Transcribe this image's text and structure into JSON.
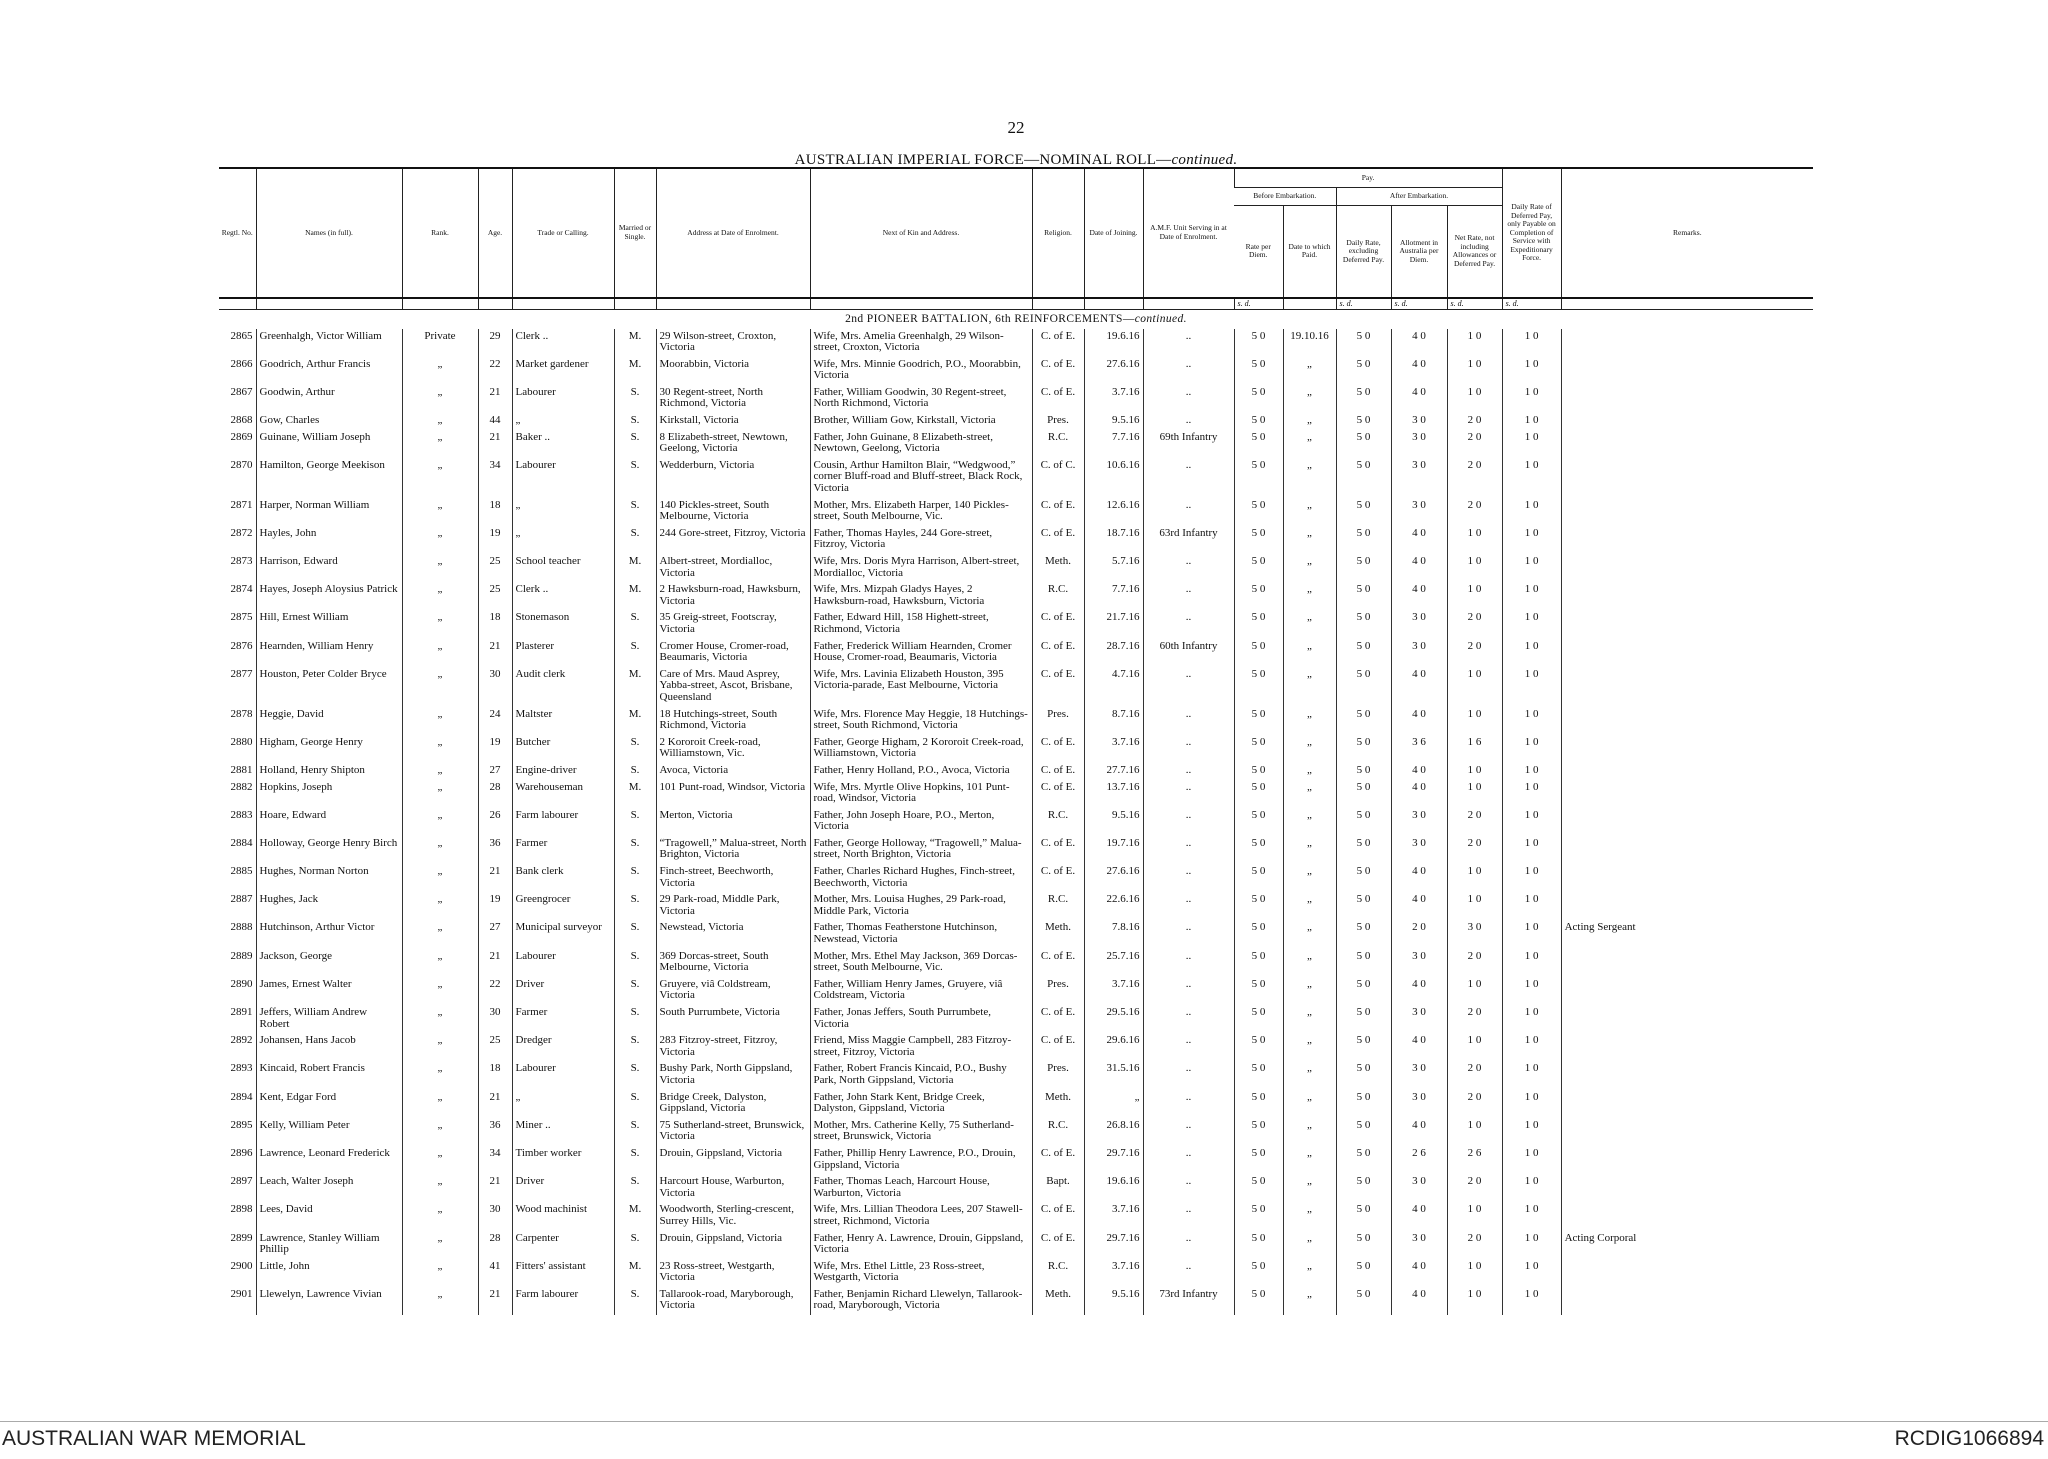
{
  "page_number": "22",
  "title": {
    "main": "AUSTRALIAN IMPERIAL FORCE—NOMINAL ROLL—",
    "cont": "continued."
  },
  "header": {
    "columns": [
      "Regtl. No.",
      "Names (in full).",
      "Rank.",
      "Age.",
      "Trade or Calling.",
      "Married or Single.",
      "Address at Date of Enrolment.",
      "Next of Kin and Address.",
      "Religion.",
      "Date of Joining.",
      "A.M.F. Unit Serving in at Date of Enrolment.",
      "Rate per Diem.",
      "Date to which Paid.",
      "Daily Rate, excluding Deferred Pay.",
      "Allotment in Australia per Diem.",
      "Net Rate, not including Allowances or Deferred Pay.",
      "Daily Rate of Deferred Pay, only Payable on Completion of Service with Expeditionary Force.",
      "Remarks."
    ],
    "pay": "Pay.",
    "before": "Before Embarkation.",
    "after": "After Embarkation.",
    "units": [
      "s. d.",
      "s. d.",
      "s. d.",
      "s. d.",
      "s. d."
    ]
  },
  "section": {
    "main": "2nd PIONEER BATTALION, 6th REINFORCEMENTS—",
    "cont": "continued."
  },
  "rows": [
    [
      "2865",
      "Greenhalgh, Victor William",
      "Private",
      "29",
      "Clerk ..",
      "M.",
      "29 Wilson-street, Croxton, Victoria",
      "Wife, Mrs. Amelia Greenhalgh, 29 Wilson-street, Croxton, Victoria",
      "C. of E.",
      "19.6.16",
      "..",
      "5 0",
      "19.10.16",
      "5 0",
      "4 0",
      "1 0",
      "1 0"
    ],
    [
      "2866",
      "Goodrich, Arthur Francis",
      "„",
      "22",
      "Market gardener",
      "M.",
      "Moorabbin, Victoria",
      "Wife, Mrs. Minnie Goodrich, P.O., Moorabbin, Victoria",
      "C. of E.",
      "27.6.16",
      "..",
      "5 0",
      "„",
      "5 0",
      "4 0",
      "1 0",
      "1 0"
    ],
    [
      "2867",
      "Goodwin, Arthur",
      "„",
      "21",
      "Labourer",
      "S.",
      "30 Regent-street, North Richmond, Victoria",
      "Father, William Goodwin, 30 Regent-street, North Richmond, Victoria",
      "C. of E.",
      "3.7.16",
      "..",
      "5 0",
      "„",
      "5 0",
      "4 0",
      "1 0",
      "1 0"
    ],
    [
      "2868",
      "Gow, Charles",
      "„",
      "44",
      "„",
      "S.",
      "Kirkstall, Victoria",
      "Brother, William Gow, Kirkstall, Victoria",
      "Pres.",
      "9.5.16",
      "..",
      "5 0",
      "„",
      "5 0",
      "3 0",
      "2 0",
      "1 0"
    ],
    [
      "2869",
      "Guinane, William Joseph",
      "„",
      "21",
      "Baker ..",
      "S.",
      "8 Elizabeth-street, Newtown, Geelong, Victoria",
      "Father, John Guinane, 8 Elizabeth-street, Newtown, Geelong, Victoria",
      "R.C.",
      "7.7.16",
      "69th Infantry",
      "5 0",
      "„",
      "5 0",
      "3 0",
      "2 0",
      "1 0"
    ],
    [
      "2870",
      "Hamilton, George Meekison",
      "„",
      "34",
      "Labourer",
      "S.",
      "Wedderburn, Victoria",
      "Cousin, Arthur Hamilton Blair, “Wedgwood,” corner Bluff-road and Bluff-street, Black Rock, Victoria",
      "C. of C.",
      "10.6.16",
      "..",
      "5 0",
      "„",
      "5 0",
      "3 0",
      "2 0",
      "1 0"
    ],
    [
      "2871",
      "Harper, Norman William",
      "„",
      "18",
      "„",
      "S.",
      "140 Pickles-street, South Melbourne, Victoria",
      "Mother, Mrs. Elizabeth Harper, 140 Pickles-street, South Melbourne, Vic.",
      "C. of E.",
      "12.6.16",
      "..",
      "5 0",
      "„",
      "5 0",
      "3 0",
      "2 0",
      "1 0"
    ],
    [
      "2872",
      "Hayles, John",
      "„",
      "19",
      "„",
      "S.",
      "244 Gore-street, Fitzroy, Victoria",
      "Father, Thomas Hayles, 244 Gore-street, Fitzroy, Victoria",
      "C. of E.",
      "18.7.16",
      "63rd Infantry",
      "5 0",
      "„",
      "5 0",
      "4 0",
      "1 0",
      "1 0"
    ],
    [
      "2873",
      "Harrison, Edward",
      "„",
      "25",
      "School teacher",
      "M.",
      "Albert-street, Mordialloc, Victoria",
      "Wife, Mrs. Doris Myra Harrison, Albert-street, Mordialloc, Victoria",
      "Meth.",
      "5.7.16",
      "..",
      "5 0",
      "„",
      "5 0",
      "4 0",
      "1 0",
      "1 0"
    ],
    [
      "2874",
      "Hayes, Joseph Aloysius Patrick",
      "„",
      "25",
      "Clerk ..",
      "M.",
      "2 Hawksburn-road, Hawksburn, Victoria",
      "Wife, Mrs. Mizpah Gladys Hayes, 2 Hawksburn-road, Hawksburn, Victoria",
      "R.C.",
      "7.7.16",
      "..",
      "5 0",
      "„",
      "5 0",
      "4 0",
      "1 0",
      "1 0"
    ],
    [
      "2875",
      "Hill, Ernest William",
      "„",
      "18",
      "Stonemason",
      "S.",
      "35 Greig-street, Footscray, Victoria",
      "Father, Edward Hill, 158 Highett-street, Richmond, Victoria",
      "C. of E.",
      "21.7.16",
      "..",
      "5 0",
      "„",
      "5 0",
      "3 0",
      "2 0",
      "1 0"
    ],
    [
      "2876",
      "Hearnden, William Henry",
      "„",
      "21",
      "Plasterer",
      "S.",
      "Cromer House, Cromer-road, Beaumaris, Victoria",
      "Father, Frederick William Hearnden, Cromer House, Cromer-road, Beaumaris, Victoria",
      "C. of E.",
      "28.7.16",
      "60th Infantry",
      "5 0",
      "„",
      "5 0",
      "3 0",
      "2 0",
      "1 0"
    ],
    [
      "2877",
      "Houston, Peter Colder Bryce",
      "„",
      "30",
      "Audit clerk",
      "M.",
      "Care of Mrs. Maud Asprey, Yabba-street, Ascot, Brisbane, Queensland",
      "Wife, Mrs. Lavinia Elizabeth Houston, 395 Victoria-parade, East Melbourne, Victoria",
      "C. of E.",
      "4.7.16",
      "..",
      "5 0",
      "„",
      "5 0",
      "4 0",
      "1 0",
      "1 0"
    ],
    [
      "2878",
      "Heggie, David",
      "„",
      "24",
      "Maltster",
      "M.",
      "18 Hutchings-street, South Richmond, Victoria",
      "Wife, Mrs. Florence May Heggie, 18 Hutchings-street, South Richmond, Victoria",
      "Pres.",
      "8.7.16",
      "..",
      "5 0",
      "„",
      "5 0",
      "4 0",
      "1 0",
      "1 0"
    ],
    [
      "2880",
      "Higham, George Henry",
      "„",
      "19",
      "Butcher",
      "S.",
      "2 Kororoit Creek-road, Williamstown, Vic.",
      "Father, George Higham, 2 Kororoit Creek-road, Williamstown, Victoria",
      "C. of E.",
      "3.7.16",
      "..",
      "5 0",
      "„",
      "5 0",
      "3 6",
      "1 6",
      "1 0"
    ],
    [
      "2881",
      "Holland, Henry Shipton",
      "„",
      "27",
      "Engine-driver",
      "S.",
      "Avoca, Victoria",
      "Father, Henry Holland, P.O., Avoca, Victoria",
      "C. of E.",
      "27.7.16",
      "..",
      "5 0",
      "„",
      "5 0",
      "4 0",
      "1 0",
      "1 0"
    ],
    [
      "2882",
      "Hopkins, Joseph",
      "„",
      "28",
      "Warehouseman",
      "M.",
      "101 Punt-road, Windsor, Victoria",
      "Wife, Mrs. Myrtle Olive Hopkins, 101 Punt-road, Windsor, Victoria",
      "C. of E.",
      "13.7.16",
      "..",
      "5 0",
      "„",
      "5 0",
      "4 0",
      "1 0",
      "1 0"
    ],
    [
      "2883",
      "Hoare, Edward",
      "„",
      "26",
      "Farm labourer",
      "S.",
      "Merton, Victoria",
      "Father, John Joseph Hoare, P.O., Merton, Victoria",
      "R.C.",
      "9.5.16",
      "..",
      "5 0",
      "„",
      "5 0",
      "3 0",
      "2 0",
      "1 0"
    ],
    [
      "2884",
      "Holloway, George Henry Birch",
      "„",
      "36",
      "Farmer",
      "S.",
      "“Tragowell,” Malua-street, North Brighton, Victoria",
      "Father, George Holloway, “Tragowell,” Malua-street, North Brighton, Victoria",
      "C. of E.",
      "19.7.16",
      "..",
      "5 0",
      "„",
      "5 0",
      "3 0",
      "2 0",
      "1 0"
    ],
    [
      "2885",
      "Hughes, Norman Norton",
      "„",
      "21",
      "Bank clerk",
      "S.",
      "Finch-street, Beechworth, Victoria",
      "Father, Charles Richard Hughes, Finch-street, Beechworth, Victoria",
      "C. of E.",
      "27.6.16",
      "..",
      "5 0",
      "„",
      "5 0",
      "4 0",
      "1 0",
      "1 0"
    ],
    [
      "2887",
      "Hughes, Jack",
      "„",
      "19",
      "Greengrocer",
      "S.",
      "29 Park-road, Middle Park, Victoria",
      "Mother, Mrs. Louisa Hughes, 29 Park-road, Middle Park, Victoria",
      "R.C.",
      "22.6.16",
      "..",
      "5 0",
      "„",
      "5 0",
      "4 0",
      "1 0",
      "1 0"
    ],
    [
      "2888",
      "Hutchinson, Arthur Victor",
      "„",
      "27",
      "Municipal surveyor",
      "S.",
      "Newstead, Victoria",
      "Father, Thomas Featherstone Hutchinson, Newstead, Victoria",
      "Meth.",
      "7.8.16",
      "..",
      "5 0",
      "„",
      "5 0",
      "2 0",
      "3 0",
      "1 0",
      "Acting Sergeant"
    ],
    [
      "2889",
      "Jackson, George",
      "„",
      "21",
      "Labourer",
      "S.",
      "369 Dorcas-street, South Melbourne, Victoria",
      "Mother, Mrs. Ethel May Jackson, 369 Dorcas-street, South Melbourne, Vic.",
      "C. of E.",
      "25.7.16",
      "..",
      "5 0",
      "„",
      "5 0",
      "3 0",
      "2 0",
      "1 0"
    ],
    [
      "2890",
      "James, Ernest Walter",
      "„",
      "22",
      "Driver",
      "S.",
      "Gruyere, viâ Coldstream, Victoria",
      "Father, William Henry James, Gruyere, viâ Coldstream, Victoria",
      "Pres.",
      "3.7.16",
      "..",
      "5 0",
      "„",
      "5 0",
      "4 0",
      "1 0",
      "1 0"
    ],
    [
      "2891",
      "Jeffers, William Andrew Robert",
      "„",
      "30",
      "Farmer",
      "S.",
      "South Purrumbete, Victoria",
      "Father, Jonas Jeffers, South Purrumbete, Victoria",
      "C. of E.",
      "29.5.16",
      "..",
      "5 0",
      "„",
      "5 0",
      "3 0",
      "2 0",
      "1 0"
    ],
    [
      "2892",
      "Johansen, Hans Jacob",
      "„",
      "25",
      "Dredger",
      "S.",
      "283 Fitzroy-street, Fitzroy, Victoria",
      "Friend, Miss Maggie Campbell, 283 Fitzroy-street, Fitzroy, Victoria",
      "C. of E.",
      "29.6.16",
      "..",
      "5 0",
      "„",
      "5 0",
      "4 0",
      "1 0",
      "1 0"
    ],
    [
      "2893",
      "Kincaid, Robert Francis",
      "„",
      "18",
      "Labourer",
      "S.",
      "Bushy Park, North Gippsland, Victoria",
      "Father, Robert Francis Kincaid, P.O., Bushy Park, North Gippsland, Victoria",
      "Pres.",
      "31.5.16",
      "..",
      "5 0",
      "„",
      "5 0",
      "3 0",
      "2 0",
      "1 0"
    ],
    [
      "2894",
      "Kent, Edgar Ford",
      "„",
      "21",
      "„",
      "S.",
      "Bridge Creek, Dalyston, Gippsland, Victoria",
      "Father, John Stark Kent, Bridge Creek, Dalyston, Gippsland, Victoria",
      "Meth.",
      "„",
      "..",
      "5 0",
      "„",
      "5 0",
      "3 0",
      "2 0",
      "1 0"
    ],
    [
      "2895",
      "Kelly, William Peter",
      "„",
      "36",
      "Miner ..",
      "S.",
      "75 Sutherland-street, Brunswick, Victoria",
      "Mother, Mrs. Catherine Kelly, 75 Sutherland-street, Brunswick, Victoria",
      "R.C.",
      "26.8.16",
      "..",
      "5 0",
      "„",
      "5 0",
      "4 0",
      "1 0",
      "1 0"
    ],
    [
      "2896",
      "Lawrence, Leonard Frederick",
      "„",
      "34",
      "Timber worker",
      "S.",
      "Drouin, Gippsland, Victoria",
      "Father, Phillip Henry Lawrence, P.O., Drouin, Gippsland, Victoria",
      "C. of E.",
      "29.7.16",
      "..",
      "5 0",
      "„",
      "5 0",
      "2 6",
      "2 6",
      "1 0"
    ],
    [
      "2897",
      "Leach, Walter Joseph",
      "„",
      "21",
      "Driver",
      "S.",
      "Harcourt House, Warburton, Victoria",
      "Father, Thomas Leach, Harcourt House, Warburton, Victoria",
      "Bapt.",
      "19.6.16",
      "..",
      "5 0",
      "„",
      "5 0",
      "3 0",
      "2 0",
      "1 0"
    ],
    [
      "2898",
      "Lees, David",
      "„",
      "30",
      "Wood machinist",
      "M.",
      "Woodworth, Sterling-crescent, Surrey Hills, Vic.",
      "Wife, Mrs. Lillian Theodora Lees, 207 Stawell-street, Richmond, Victoria",
      "C. of E.",
      "3.7.16",
      "..",
      "5 0",
      "„",
      "5 0",
      "4 0",
      "1 0",
      "1 0"
    ],
    [
      "2899",
      "Lawrence, Stanley William Phillip",
      "„",
      "28",
      "Carpenter",
      "S.",
      "Drouin, Gippsland, Victoria",
      "Father, Henry A. Lawrence, Drouin, Gippsland, Victoria",
      "C. of E.",
      "29.7.16",
      "..",
      "5 0",
      "„",
      "5 0",
      "3 0",
      "2 0",
      "1 0",
      "Acting Corporal"
    ],
    [
      "2900",
      "Little, John",
      "„",
      "41",
      "Fitters' assistant",
      "M.",
      "23 Ross-street, Westgarth, Victoria",
      "Wife, Mrs. Ethel Little, 23 Ross-street, Westgarth, Victoria",
      "R.C.",
      "3.7.16",
      "..",
      "5 0",
      "„",
      "5 0",
      "4 0",
      "1 0",
      "1 0"
    ],
    [
      "2901",
      "Llewelyn, Lawrence Vivian",
      "„",
      "21",
      "Farm labourer",
      "S.",
      "Tallarook-road, Maryborough, Victoria",
      "Father, Benjamin Richard Llewelyn, Tallarook-road, Maryborough, Victoria",
      "Meth.",
      "9.5.16",
      "73rd Infantry",
      "5 0",
      "„",
      "5 0",
      "4 0",
      "1 0",
      "1 0"
    ]
  ],
  "footer": {
    "left": "AUSTRALIAN WAR MEMORIAL",
    "right": "RCDIG1066894"
  }
}
